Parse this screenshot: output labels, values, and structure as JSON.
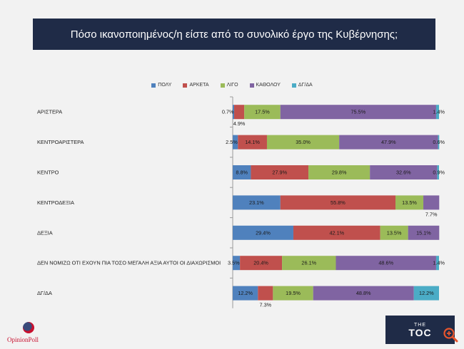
{
  "title": "Πόσο ικανοποιημένος/η είστε από το συνολικό έργο της Κυβέρνησης;",
  "chart_data": {
    "type": "bar",
    "orientation": "horizontal",
    "stacked": true,
    "legend_position": "top",
    "xlim": [
      0,
      100
    ],
    "categories": [
      "ΑΡΙΣΤΕΡΑ",
      "ΚΕΝΤΡΟΑΡΙΣΤΕΡΑ",
      "ΚΕΝΤΡΟ",
      "ΚΕΝΤΡΟΔΕΞΙΑ",
      "ΔΕΞΙΑ",
      "ΔΕΝ ΝΟΜΙΖΩ ΟΤΙ ΕΧΟΥΝ ΠΙΑ ΤΟΣΟ ΜΕΓΑΛΗ ΑΞΙΑ ΑΥΤΟΙ ΟΙ ΔΙΑΧΩΡΙΣΜΟΙ",
      "ΔΓ/ΔΑ"
    ],
    "series": [
      {
        "name": "ΠΟΛΥ",
        "color": "#4f81bd",
        "values": [
          0.7,
          2.5,
          8.8,
          23.1,
          29.4,
          3.5,
          12.2
        ],
        "labels": [
          "0.7%",
          "2.5%",
          "8.8%",
          "23.1%",
          "29.4%",
          "3.5%",
          "12.2%"
        ]
      },
      {
        "name": "ΑΡΚΕΤΑ",
        "color": "#c0504d",
        "values": [
          4.9,
          14.1,
          27.9,
          55.8,
          42.1,
          20.4,
          7.3
        ],
        "labels": [
          "4.9%",
          "14.1%",
          "27.9%",
          "55.8%",
          "42.1%",
          "20.4%",
          "7.3%"
        ]
      },
      {
        "name": "ΛΙΓΟ",
        "color": "#9bbb59",
        "values": [
          17.5,
          35.0,
          29.8,
          13.5,
          13.5,
          26.1,
          19.5
        ],
        "labels": [
          "17.5%",
          "35.0%",
          "29.8%",
          "13.5%",
          "13.5%",
          "26.1%",
          "19.5%"
        ]
      },
      {
        "name": "ΚΑΘΟΛΟΥ",
        "color": "#8064a2",
        "values": [
          75.5,
          47.9,
          32.6,
          7.7,
          15.1,
          48.6,
          48.8
        ],
        "labels": [
          "75.5%",
          "47.9%",
          "32.6%",
          "7.7%",
          "15.1%",
          "48.6%",
          "48.8%"
        ]
      },
      {
        "name": "ΔΓ/ΔΑ",
        "color": "#4bacc6",
        "values": [
          1.4,
          0.6,
          0.9,
          0,
          0,
          1.4,
          12.2
        ],
        "labels": [
          "1.4%",
          "0.6%",
          "0.9%",
          "",
          "",
          "1.4%",
          "12.2%"
        ]
      }
    ]
  },
  "logos": {
    "opinion_poll": "OpinionPoll",
    "toc_small": "THE",
    "toc_main": "TOC"
  },
  "icons": {
    "zoom": "zoom-in-icon"
  }
}
